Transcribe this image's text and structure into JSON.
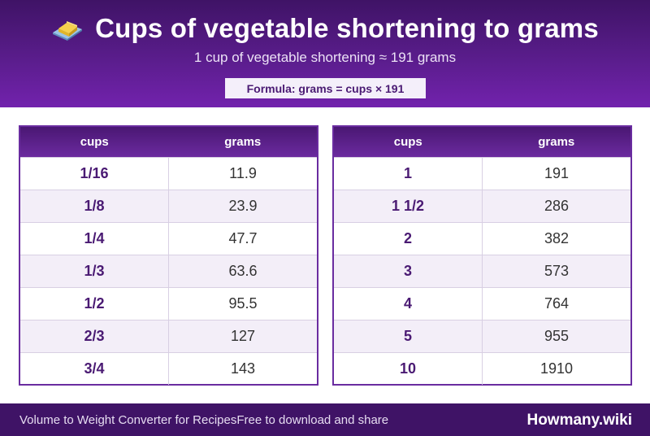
{
  "header": {
    "title": "Cups of vegetable shortening to grams",
    "subtitle": "1 cup of vegetable shortening ≈ 191 grams",
    "formula": "Formula: grams = cups × 191",
    "icon": "butter-icon"
  },
  "tables": [
    {
      "headers": [
        "cups",
        "grams"
      ],
      "rows": [
        [
          "1/16",
          "11.9"
        ],
        [
          "1/8",
          "23.9"
        ],
        [
          "1/4",
          "47.7"
        ],
        [
          "1/3",
          "63.6"
        ],
        [
          "1/2",
          "95.5"
        ],
        [
          "2/3",
          "127"
        ],
        [
          "3/4",
          "143"
        ]
      ]
    },
    {
      "headers": [
        "cups",
        "grams"
      ],
      "rows": [
        [
          "1",
          "191"
        ],
        [
          "1 1/2",
          "286"
        ],
        [
          "2",
          "382"
        ],
        [
          "3",
          "573"
        ],
        [
          "4",
          "764"
        ],
        [
          "5",
          "955"
        ],
        [
          "10",
          "1910"
        ]
      ]
    }
  ],
  "footer": {
    "left_text": "Volume to Weight Converter for Recipes",
    "middle_text": "Free to download and share",
    "brand": "Howmany.wiki"
  },
  "colors": {
    "header_dark": "#3f1366",
    "header_light": "#7222ad",
    "accent_text": "#4a1a73",
    "row_alt": "#f3eef8"
  }
}
